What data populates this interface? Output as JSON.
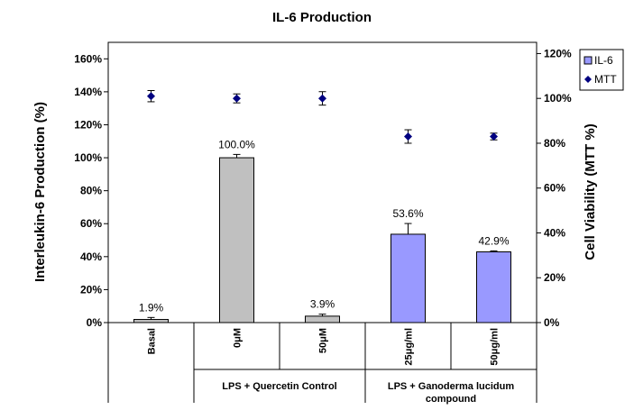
{
  "chart_data": {
    "type": "bar",
    "title": "IL-6 Production",
    "ylabel": "Interleukin-6 Production (%)",
    "y2label": "Cell Viability (MTT %)",
    "ylim": [
      0,
      170
    ],
    "y_ticks": [
      0,
      20,
      40,
      60,
      80,
      100,
      120,
      140,
      160
    ],
    "y_tick_labels": [
      "0%",
      "20%",
      "40%",
      "60%",
      "80%",
      "100%",
      "120%",
      "140%",
      "160%"
    ],
    "y2lim": [
      0,
      125
    ],
    "y2_ticks": [
      0,
      20,
      40,
      60,
      80,
      100,
      120
    ],
    "y2_tick_labels": [
      "0%",
      "20%",
      "40%",
      "60%",
      "80%",
      "100%",
      "120%"
    ],
    "categories": [
      "Basal",
      "0μM",
      "50μM",
      "25μg/ml",
      "50μg/ml"
    ],
    "groups": [
      {
        "label": "",
        "start": 0,
        "end": 0
      },
      {
        "label": "LPS + Quercetin Control",
        "start": 1,
        "end": 2
      },
      {
        "label_lines": [
          "LPS + Ganoderma lucidum",
          "compound"
        ],
        "start": 3,
        "end": 4
      }
    ],
    "series": [
      {
        "name": "IL-6",
        "axis": "left",
        "kind": "bar",
        "values": [
          1.9,
          100.0,
          3.9,
          53.6,
          42.9
        ],
        "errors": [
          1.2,
          2.0,
          1.2,
          6.5,
          0.6
        ],
        "labels": [
          "1.9%",
          "100.0%",
          "3.9%",
          "53.6%",
          "42.9%"
        ],
        "colors": [
          "#c0c0c0",
          "#c0c0c0",
          "#c0c0c0",
          "#9999ff",
          "#9999ff"
        ]
      },
      {
        "name": "MTT",
        "axis": "right",
        "kind": "scatter",
        "marker": "diamond",
        "color": "#000080",
        "values": [
          101,
          100,
          100,
          83,
          83
        ],
        "errors": [
          2.5,
          2.0,
          3.0,
          3.0,
          1.5
        ]
      }
    ],
    "legend_position": "top-right"
  }
}
